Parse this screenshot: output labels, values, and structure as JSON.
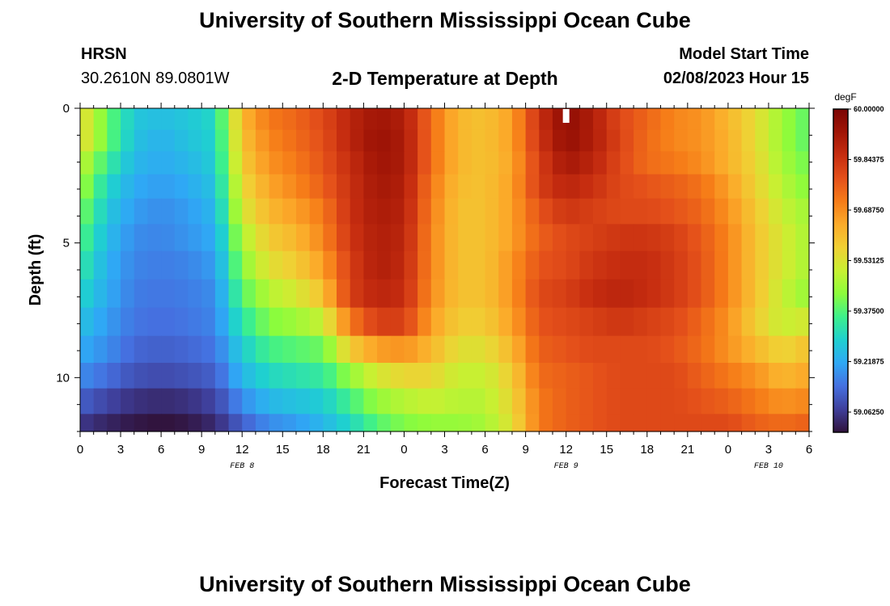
{
  "header": {
    "title": "University of Southern Mississippi Ocean Cube",
    "station": "HRSN",
    "coords": "30.2610N  89.0801W",
    "plot_title": "2-D Temperature at Depth",
    "model_label": "Model Start Time",
    "model_time": "02/08/2023 Hour 15"
  },
  "footer": {
    "title": "University of Southern Mississippi Ocean Cube"
  },
  "chart_data": {
    "type": "heatmap",
    "title": "2-D Temperature at Depth",
    "xlabel": "Forecast Time(Z)",
    "ylabel": "Depth (ft)",
    "x_range": [
      0,
      54
    ],
    "y_range": [
      0,
      12
    ],
    "x_ticks": [
      {
        "pos": 0,
        "label": "0"
      },
      {
        "pos": 3,
        "label": "3"
      },
      {
        "pos": 6,
        "label": "6"
      },
      {
        "pos": 9,
        "label": "9"
      },
      {
        "pos": 12,
        "label": "12"
      },
      {
        "pos": 15,
        "label": "15"
      },
      {
        "pos": 18,
        "label": "18"
      },
      {
        "pos": 21,
        "label": "21"
      },
      {
        "pos": 24,
        "label": "0"
      },
      {
        "pos": 27,
        "label": "3"
      },
      {
        "pos": 30,
        "label": "6"
      },
      {
        "pos": 33,
        "label": "9"
      },
      {
        "pos": 36,
        "label": "12"
      },
      {
        "pos": 39,
        "label": "15"
      },
      {
        "pos": 42,
        "label": "18"
      },
      {
        "pos": 45,
        "label": "21"
      },
      {
        "pos": 48,
        "label": "0"
      },
      {
        "pos": 51,
        "label": "3"
      },
      {
        "pos": 54,
        "label": "6"
      }
    ],
    "date_labels": [
      {
        "pos": 12,
        "label": "FEB 8"
      },
      {
        "pos": 36,
        "label": "FEB 9"
      },
      {
        "pos": 51,
        "label": "FEB 10"
      }
    ],
    "y_ticks": [
      {
        "pos": 0,
        "label": "0"
      },
      {
        "pos": 5,
        "label": "5"
      },
      {
        "pos": 10,
        "label": "10"
      }
    ],
    "colorbar": {
      "unit": "degF",
      "min": 59.0,
      "max": 60.0,
      "labels": [
        "60.00000",
        "59.84375",
        "59.68750",
        "59.53125",
        "59.37500",
        "59.21875",
        "59.06250"
      ],
      "colors": [
        "#30123b",
        "#3f3f9b",
        "#4570e0",
        "#2fa8f5",
        "#1fd0d0",
        "#3df08c",
        "#8cfc3c",
        "#c8f032",
        "#f0d034",
        "#fbab2a",
        "#f67c18",
        "#e4501a",
        "#c62d10",
        "#a01506",
        "#7a0403"
      ]
    },
    "depths_ft": [
      0.4,
      1.2,
      2.0,
      2.9,
      3.8,
      4.8,
      5.8,
      6.9,
      7.9,
      9.0,
      9.9,
      10.9,
      11.8
    ],
    "hour_knots": [
      0,
      2,
      4,
      6,
      8,
      10,
      12,
      14,
      16,
      18,
      20,
      22,
      24,
      26,
      28,
      30,
      32,
      34,
      36,
      38,
      40,
      42,
      44,
      46,
      48,
      50,
      52,
      54
    ],
    "values": [
      [
        59.56,
        59.4,
        59.27,
        59.25,
        59.27,
        59.3,
        59.62,
        59.72,
        59.75,
        59.8,
        59.88,
        59.93,
        59.9,
        59.74,
        59.62,
        59.6,
        59.66,
        59.85,
        59.96,
        59.9,
        59.8,
        59.75,
        59.7,
        59.68,
        59.62,
        59.55,
        59.45,
        59.38
      ],
      [
        59.56,
        59.4,
        59.26,
        59.23,
        59.26,
        59.29,
        59.6,
        59.7,
        59.74,
        59.79,
        59.88,
        59.94,
        59.91,
        59.74,
        59.62,
        59.6,
        59.66,
        59.84,
        59.95,
        59.9,
        59.81,
        59.74,
        59.7,
        59.68,
        59.63,
        59.55,
        59.45,
        59.38
      ],
      [
        59.5,
        59.35,
        59.24,
        59.22,
        59.24,
        59.28,
        59.58,
        59.68,
        59.72,
        59.78,
        59.86,
        59.93,
        59.91,
        59.74,
        59.62,
        59.6,
        59.65,
        59.82,
        59.92,
        59.88,
        59.8,
        59.74,
        59.72,
        59.69,
        59.63,
        59.56,
        59.46,
        59.4
      ],
      [
        59.46,
        59.3,
        59.22,
        59.2,
        59.22,
        59.26,
        59.55,
        59.65,
        59.7,
        59.76,
        59.85,
        59.92,
        59.9,
        59.72,
        59.61,
        59.6,
        59.66,
        59.82,
        59.88,
        59.85,
        59.8,
        59.78,
        59.76,
        59.73,
        59.66,
        59.57,
        59.48,
        59.42
      ],
      [
        59.42,
        59.27,
        59.2,
        59.18,
        59.2,
        59.24,
        59.52,
        59.62,
        59.66,
        59.72,
        59.85,
        59.91,
        59.89,
        59.71,
        59.6,
        59.6,
        59.66,
        59.78,
        59.84,
        59.82,
        59.8,
        59.8,
        59.78,
        59.75,
        59.68,
        59.59,
        59.5,
        59.45
      ],
      [
        59.38,
        59.25,
        59.18,
        59.17,
        59.19,
        59.22,
        59.47,
        59.58,
        59.62,
        59.7,
        59.84,
        59.9,
        59.88,
        59.7,
        59.6,
        59.6,
        59.66,
        59.76,
        59.8,
        59.82,
        59.84,
        59.84,
        59.82,
        59.77,
        59.7,
        59.6,
        59.52,
        59.46
      ],
      [
        59.34,
        59.23,
        59.17,
        59.16,
        59.17,
        59.2,
        59.43,
        59.54,
        59.58,
        59.66,
        59.82,
        59.9,
        59.87,
        59.7,
        59.6,
        59.6,
        59.68,
        59.78,
        59.8,
        59.84,
        59.86,
        59.86,
        59.83,
        59.78,
        59.7,
        59.6,
        59.52,
        59.46
      ],
      [
        59.3,
        59.22,
        59.16,
        59.15,
        59.16,
        59.18,
        59.38,
        59.48,
        59.52,
        59.6,
        59.82,
        59.88,
        59.86,
        59.69,
        59.6,
        59.6,
        59.68,
        59.8,
        59.82,
        59.86,
        59.88,
        59.86,
        59.83,
        59.78,
        59.7,
        59.6,
        59.5,
        59.44
      ],
      [
        59.26,
        59.2,
        59.15,
        59.14,
        59.15,
        59.17,
        59.33,
        59.42,
        59.45,
        59.5,
        59.72,
        59.82,
        59.82,
        59.66,
        59.58,
        59.58,
        59.66,
        59.78,
        59.8,
        59.82,
        59.84,
        59.82,
        59.8,
        59.75,
        59.68,
        59.58,
        59.5,
        59.52
      ],
      [
        59.22,
        59.18,
        59.13,
        59.12,
        59.13,
        59.15,
        59.28,
        59.36,
        59.38,
        59.4,
        59.58,
        59.66,
        59.68,
        59.62,
        59.54,
        59.54,
        59.62,
        59.76,
        59.78,
        59.8,
        59.8,
        59.8,
        59.78,
        59.74,
        59.68,
        59.62,
        59.56,
        59.6
      ],
      [
        59.18,
        59.14,
        59.1,
        59.09,
        59.1,
        59.12,
        59.24,
        59.3,
        59.32,
        59.34,
        59.44,
        59.52,
        59.56,
        59.56,
        59.5,
        59.5,
        59.58,
        59.74,
        59.76,
        59.78,
        59.8,
        59.8,
        59.8,
        59.76,
        59.72,
        59.68,
        59.62,
        59.65
      ],
      [
        59.12,
        59.08,
        59.05,
        59.04,
        59.05,
        59.08,
        59.18,
        59.24,
        59.26,
        59.28,
        59.36,
        59.44,
        59.48,
        59.5,
        59.48,
        59.48,
        59.56,
        59.72,
        59.76,
        59.78,
        59.8,
        59.8,
        59.8,
        59.78,
        59.76,
        59.72,
        59.68,
        59.7
      ],
      [
        59.06,
        59.03,
        59.01,
        59.0,
        59.01,
        59.04,
        59.12,
        59.18,
        59.2,
        59.24,
        59.3,
        59.38,
        59.42,
        59.44,
        59.44,
        59.46,
        59.54,
        59.72,
        59.76,
        59.78,
        59.8,
        59.8,
        59.8,
        59.8,
        59.8,
        59.76,
        59.74,
        59.76
      ]
    ],
    "max_marker": {
      "x": 36,
      "y": 0.15
    }
  }
}
